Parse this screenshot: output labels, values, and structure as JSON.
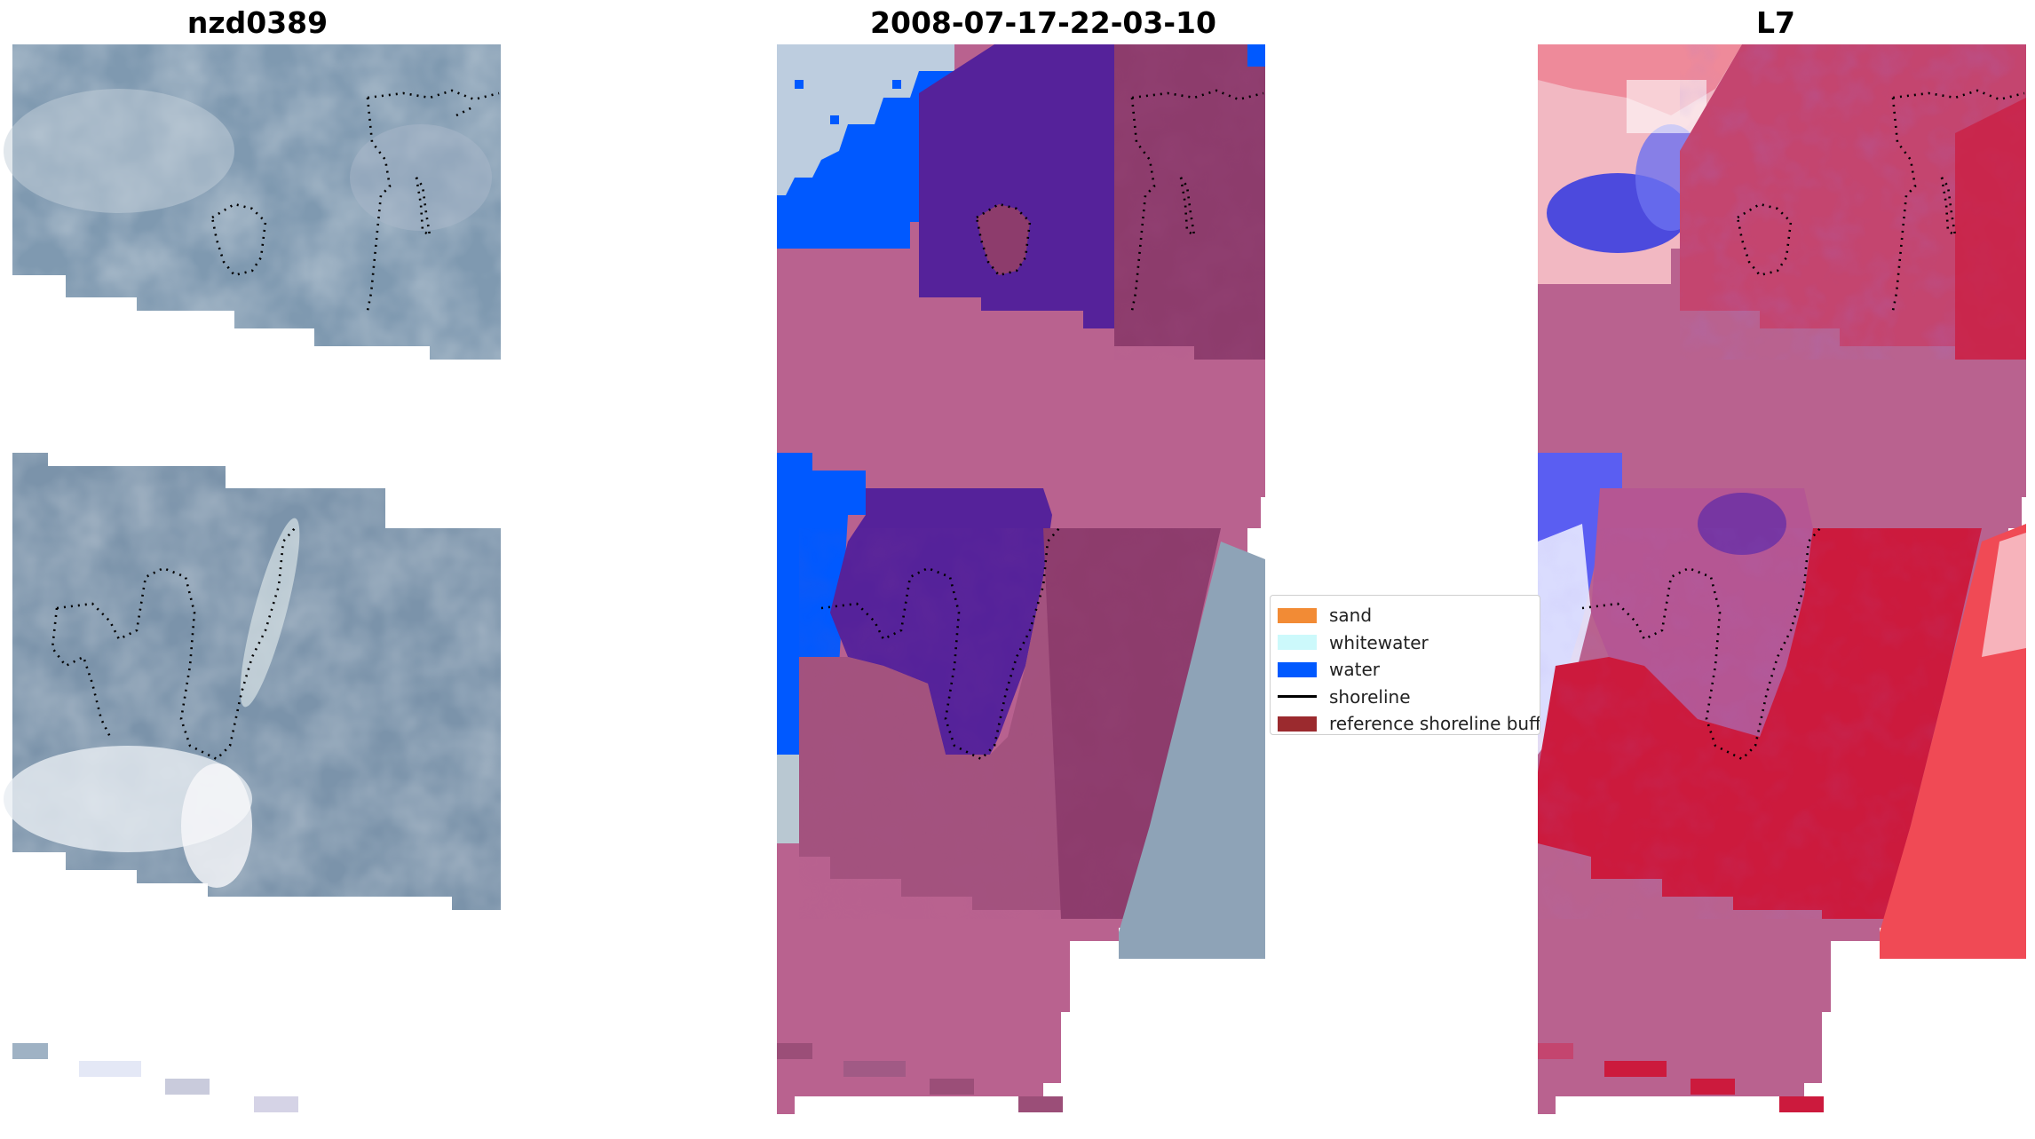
{
  "figure": {
    "panels": [
      {
        "title": "nzd0389",
        "kind": "rgb"
      },
      {
        "title": "2008-07-17-22-03-10",
        "kind": "classified"
      },
      {
        "title": "L7",
        "kind": "index"
      }
    ],
    "legend": {
      "items": [
        {
          "label": "sand",
          "color": "#f28b35",
          "type": "patch"
        },
        {
          "label": "whitewater",
          "color": "#ccf9fb",
          "type": "patch"
        },
        {
          "label": "water",
          "color": "#0059ff",
          "type": "patch"
        },
        {
          "label": "shoreline",
          "color": "#000000",
          "type": "line"
        },
        {
          "label": "reference shoreline buffer",
          "color": "#9b2a2e",
          "type": "patch"
        }
      ]
    },
    "colors": {
      "rgb_base": "#7d97ad",
      "rgb_light": "#c4d0d8",
      "cloud": "#eef0f4",
      "class_base": "#b9628f",
      "class_purple": "#55229a",
      "class_maroon": "#8d3c6c",
      "water": "#0059ff",
      "index_red": "#cc1a3d",
      "index_blue": "#3a3ee0",
      "index_purple": "#b2447e",
      "shoreline": "#000000"
    }
  }
}
